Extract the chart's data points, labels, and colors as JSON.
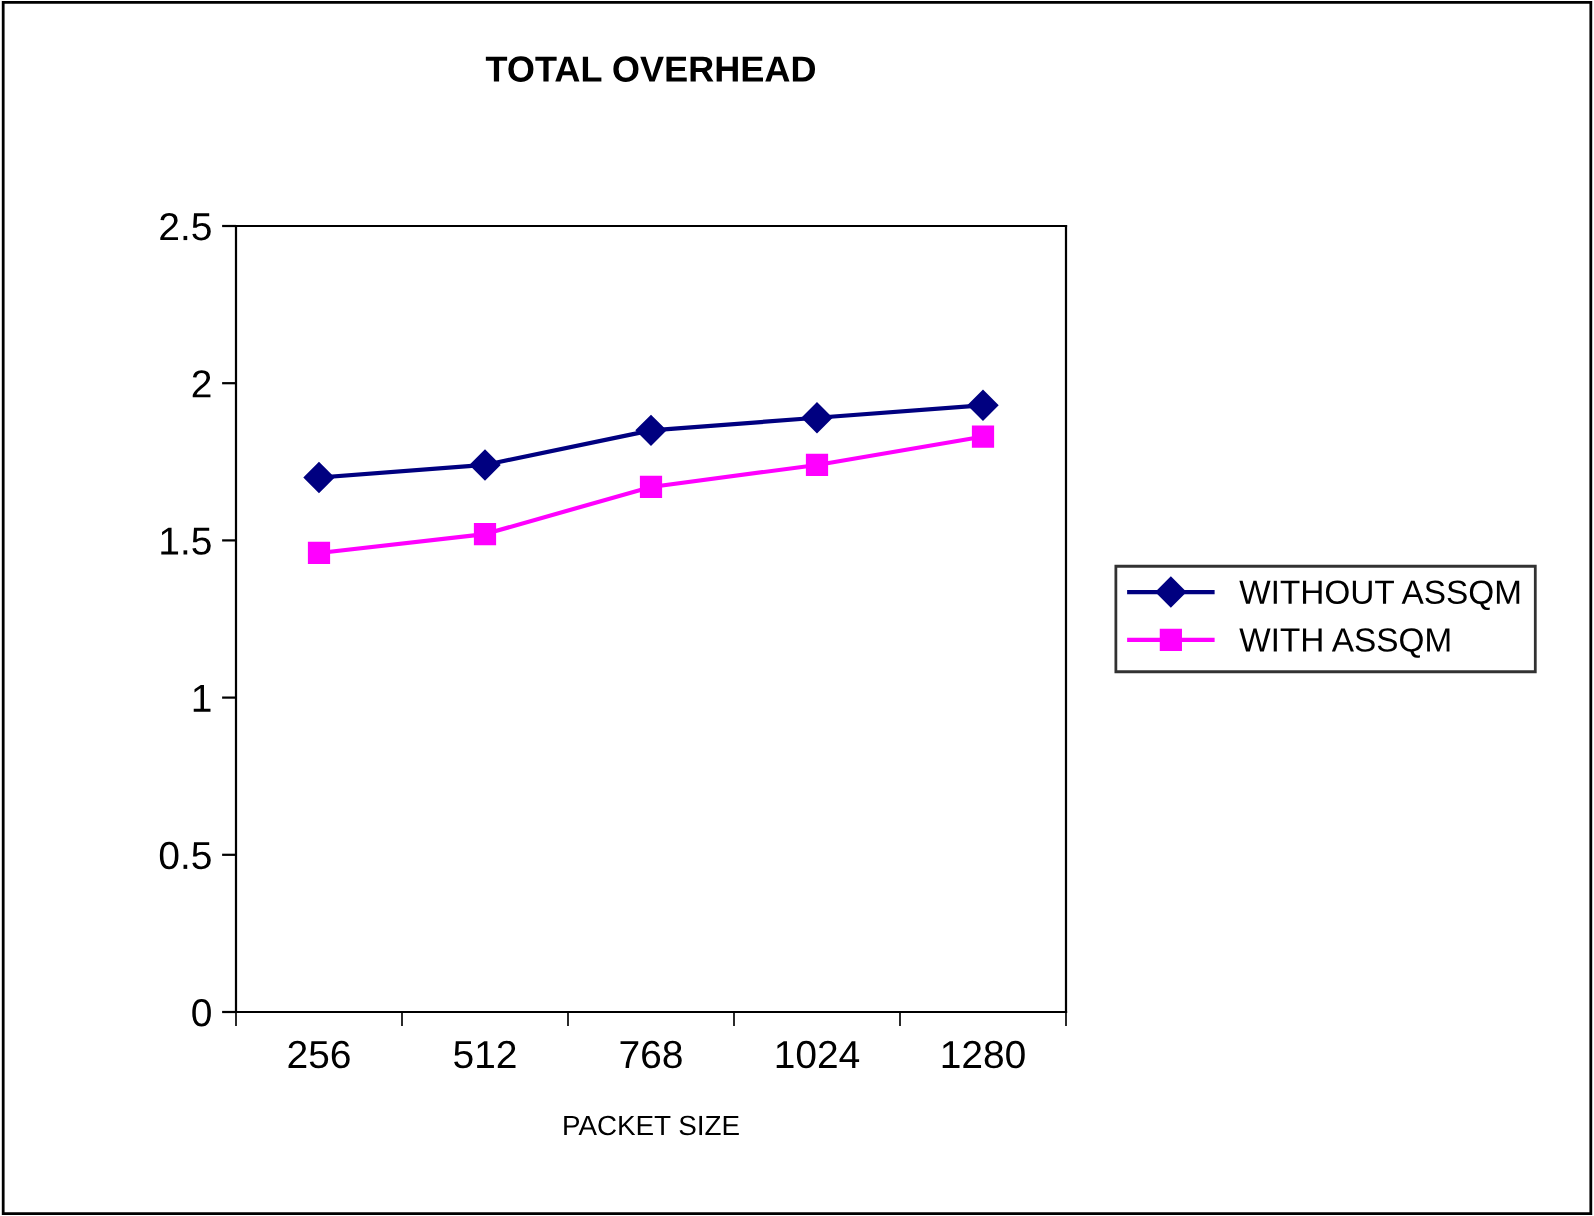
{
  "chart_data": {
    "type": "line",
    "title": "TOTAL OVERHEAD",
    "xlabel": "PACKET SIZE",
    "categories": [
      "256",
      "512",
      "768",
      "1024",
      "1280"
    ],
    "series": [
      {
        "name": "WITHOUT ASSQM",
        "color": "#000080",
        "marker": "diamond",
        "values": [
          1.7,
          1.74,
          1.85,
          1.89,
          1.93
        ]
      },
      {
        "name": "WITH ASSQM",
        "color": "#ff00ff",
        "marker": "square",
        "values": [
          1.46,
          1.52,
          1.67,
          1.74,
          1.83
        ]
      }
    ],
    "ylim": [
      0,
      2.5
    ],
    "yticks": [
      0,
      0.5,
      1,
      1.5,
      2,
      2.5
    ],
    "grid": false,
    "legend": "right"
  }
}
